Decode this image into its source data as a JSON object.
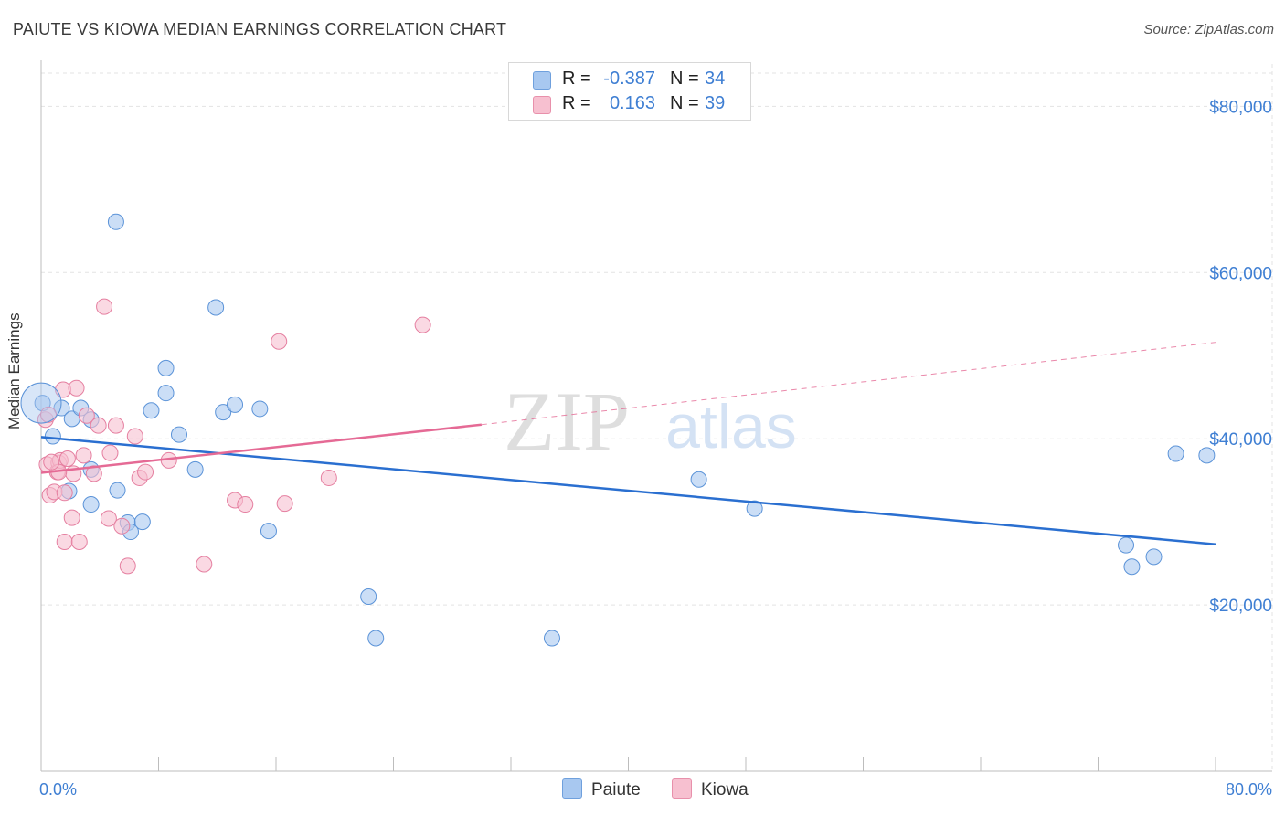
{
  "title": "PAIUTE VS KIOWA MEDIAN EARNINGS CORRELATION CHART",
  "source": "Source: ZipAtlas.com",
  "watermark": {
    "zip": "ZIP",
    "atlas": "atlas"
  },
  "legend": {
    "rows": [
      {
        "r_label": "R =",
        "r_value": "-0.387",
        "n_label": "N =",
        "n_value": "34",
        "color": "#a8c8f0",
        "border": "#6fa0dd"
      },
      {
        "r_label": "R =",
        "r_value": "0.163",
        "n_label": "N =",
        "n_value": "39",
        "color": "#f7c0d0",
        "border": "#e890ab"
      }
    ]
  },
  "bottom_legend": {
    "paiute": "Paiute",
    "kiowa": "Kiowa"
  },
  "chart_data": {
    "type": "scatter",
    "title": "PAIUTE VS KIOWA MEDIAN EARNINGS CORRELATION CHART",
    "xlabel": "",
    "ylabel": "Median Earnings",
    "xlim": [
      0,
      80
    ],
    "ylim": [
      0,
      84000
    ],
    "x_tick_labels": [
      "0.0%",
      "80.0%"
    ],
    "y_ticks": [
      20000,
      40000,
      60000,
      80000
    ],
    "y_tick_labels": [
      "$20,000",
      "$40,000",
      "$60,000",
      "$80,000"
    ],
    "grid": true,
    "legend_position": "top-center",
    "series": [
      {
        "name": "Paiute",
        "color": "#a8c8f0",
        "stroke": "#5b93d8",
        "trend_color": "#2a6fd0",
        "points": [
          [
            0.1,
            44300
          ],
          [
            0.8,
            40300
          ],
          [
            1.4,
            43700
          ],
          [
            2.1,
            42400
          ],
          [
            2.7,
            43700
          ],
          [
            3.4,
            42300
          ],
          [
            3.4,
            36300
          ],
          [
            5.1,
            66100
          ],
          [
            5.2,
            33800
          ],
          [
            5.9,
            29900
          ],
          [
            6.1,
            28800
          ],
          [
            6.9,
            30000
          ],
          [
            7.5,
            43400
          ],
          [
            8.5,
            48500
          ],
          [
            8.5,
            45500
          ],
          [
            9.4,
            40500
          ],
          [
            10.5,
            36300
          ],
          [
            11.9,
            55800
          ],
          [
            12.4,
            43200
          ],
          [
            13.2,
            44100
          ],
          [
            14.9,
            43600
          ],
          [
            15.5,
            28900
          ],
          [
            22.3,
            21000
          ],
          [
            22.8,
            16000
          ],
          [
            34.8,
            16000
          ],
          [
            44.8,
            35100
          ],
          [
            48.6,
            31600
          ],
          [
            73.9,
            27200
          ],
          [
            74.3,
            24600
          ],
          [
            75.8,
            25800
          ],
          [
            77.3,
            38200
          ],
          [
            79.4,
            38000
          ],
          [
            3.4,
            32100
          ],
          [
            1.9,
            33700
          ]
        ],
        "trend": {
          "x1": 0,
          "y1": 40200,
          "x2": 80,
          "y2": 27300
        }
      },
      {
        "name": "Kiowa",
        "color": "#f7c0d0",
        "stroke": "#e57fa0",
        "trend_color": "#e56a95",
        "points": [
          [
            0.3,
            42300
          ],
          [
            0.4,
            36900
          ],
          [
            0.6,
            33200
          ],
          [
            0.9,
            33600
          ],
          [
            1.1,
            36000
          ],
          [
            1.2,
            37100
          ],
          [
            1.3,
            37400
          ],
          [
            1.5,
            45900
          ],
          [
            1.6,
            33500
          ],
          [
            1.6,
            27600
          ],
          [
            1.8,
            37600
          ],
          [
            2.1,
            30500
          ],
          [
            2.2,
            35800
          ],
          [
            2.4,
            46100
          ],
          [
            2.9,
            38000
          ],
          [
            3.1,
            42800
          ],
          [
            3.6,
            35800
          ],
          [
            3.9,
            41600
          ],
          [
            4.3,
            55900
          ],
          [
            4.6,
            30400
          ],
          [
            4.7,
            38300
          ],
          [
            5.1,
            41600
          ],
          [
            5.5,
            29500
          ],
          [
            5.9,
            24700
          ],
          [
            6.4,
            40300
          ],
          [
            6.7,
            35300
          ],
          [
            7.1,
            36000
          ],
          [
            8.7,
            37400
          ],
          [
            11.1,
            24900
          ],
          [
            13.2,
            32600
          ],
          [
            13.9,
            32100
          ],
          [
            16.2,
            51700
          ],
          [
            16.6,
            32200
          ],
          [
            19.6,
            35300
          ],
          [
            26.0,
            53700
          ],
          [
            2.6,
            27600
          ],
          [
            1.2,
            36000
          ],
          [
            0.5,
            42900
          ],
          [
            0.7,
            37200
          ]
        ],
        "trend": {
          "x1": 0,
          "y1": 35900,
          "x2": 30,
          "y2": 41700
        },
        "trend_extension": {
          "x1": 30,
          "y1": 41700,
          "x2": 80,
          "y2": 51600
        }
      }
    ]
  }
}
